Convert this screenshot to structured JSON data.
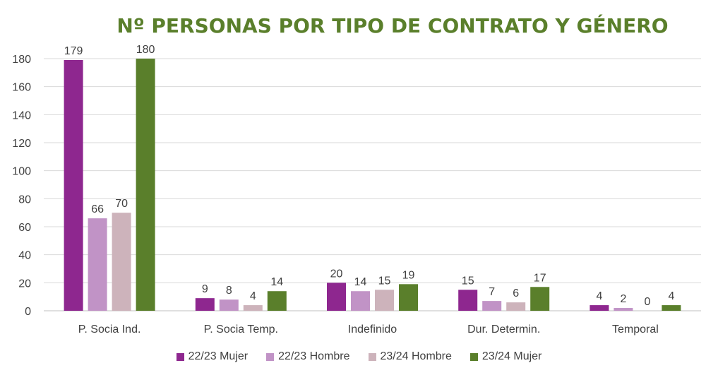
{
  "chart_data": {
    "type": "bar",
    "title": "Nº PERSONAS POR TIPO DE CONTRATO Y GÉNERO",
    "categories": [
      "P. Socia Ind.",
      "P. Socia Temp.",
      "Indefinido",
      "Dur. Determin.",
      "Temporal"
    ],
    "series": [
      {
        "name": "22/23 Mujer",
        "color": "#8e278f",
        "values": [
          179,
          9,
          20,
          15,
          4
        ]
      },
      {
        "name": "22/23 Hombre",
        "color": "#c193c6",
        "values": [
          66,
          8,
          14,
          7,
          2
        ]
      },
      {
        "name": "23/24 Hombre",
        "color": "#cdb3bb",
        "values": [
          70,
          4,
          15,
          6,
          0
        ]
      },
      {
        "name": "23/24 Mujer",
        "color": "#5a7f2b",
        "values": [
          180,
          14,
          19,
          17,
          4
        ]
      }
    ],
    "ylim": [
      0,
      180
    ],
    "yticks": [
      0,
      20,
      40,
      60,
      80,
      100,
      120,
      140,
      160,
      180
    ],
    "xlabel": "",
    "ylabel": "",
    "grid": true,
    "legend": "bottom"
  }
}
